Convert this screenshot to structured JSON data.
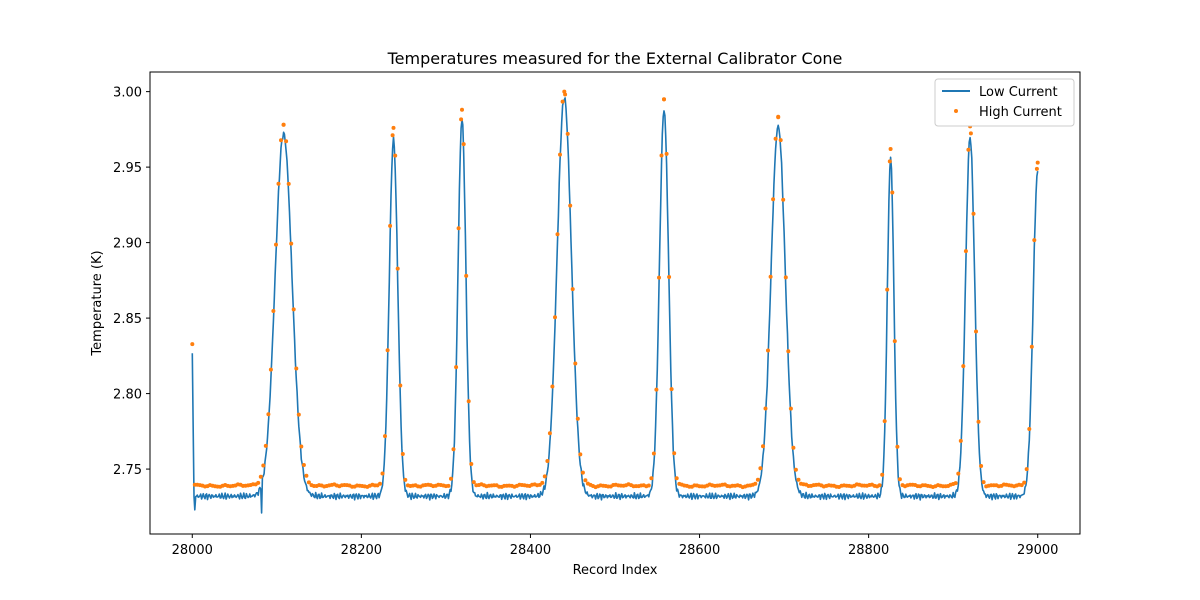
{
  "chart_data": {
    "type": "line",
    "title": "Temperatures measured for the External Calibrator Cone",
    "xlabel": "Record Index",
    "ylabel": "Temperature (K)",
    "xlim": [
      27950,
      29050
    ],
    "ylim": [
      2.707,
      3.013
    ],
    "xticks": [
      28000,
      28200,
      28400,
      28600,
      28800,
      29000
    ],
    "xtick_labels": [
      "28000",
      "28200",
      "28400",
      "28600",
      "28800",
      "29000"
    ],
    "yticks": [
      2.75,
      2.8,
      2.85,
      2.9,
      2.95,
      3.0
    ],
    "ytick_labels": [
      "2.75",
      "2.80",
      "2.85",
      "2.90",
      "2.95",
      "3.00"
    ],
    "grid": false,
    "legend": {
      "position": "top-right"
    },
    "series": [
      {
        "name": "Low Current",
        "style": "line",
        "color": "#1f77b4",
        "baseline": 2.732,
        "start_value": 2.828
      },
      {
        "name": "High Current",
        "style": "scatter",
        "color": "#ff7f0e",
        "baseline": 2.739,
        "start_value": 2.833
      }
    ],
    "peaks": [
      {
        "x": 28108,
        "low": 2.972,
        "high": 2.978,
        "width": 26
      },
      {
        "x": 28238,
        "low": 2.968,
        "high": 2.976,
        "width": 13
      },
      {
        "x": 28319,
        "low": 2.982,
        "high": 2.988,
        "width": 12
      },
      {
        "x": 28440,
        "low": 2.996,
        "high": 3.0,
        "width": 22
      },
      {
        "x": 28558,
        "low": 2.988,
        "high": 2.995,
        "width": 14
      },
      {
        "x": 28693,
        "low": 2.977,
        "high": 2.983,
        "width": 22
      },
      {
        "x": 28826,
        "low": 2.956,
        "high": 2.962,
        "width": 10
      },
      {
        "x": 28920,
        "low": 2.97,
        "high": 2.977,
        "width": 14
      },
      {
        "x": 29000,
        "low": 2.947,
        "high": 2.953,
        "width": 14
      }
    ]
  }
}
